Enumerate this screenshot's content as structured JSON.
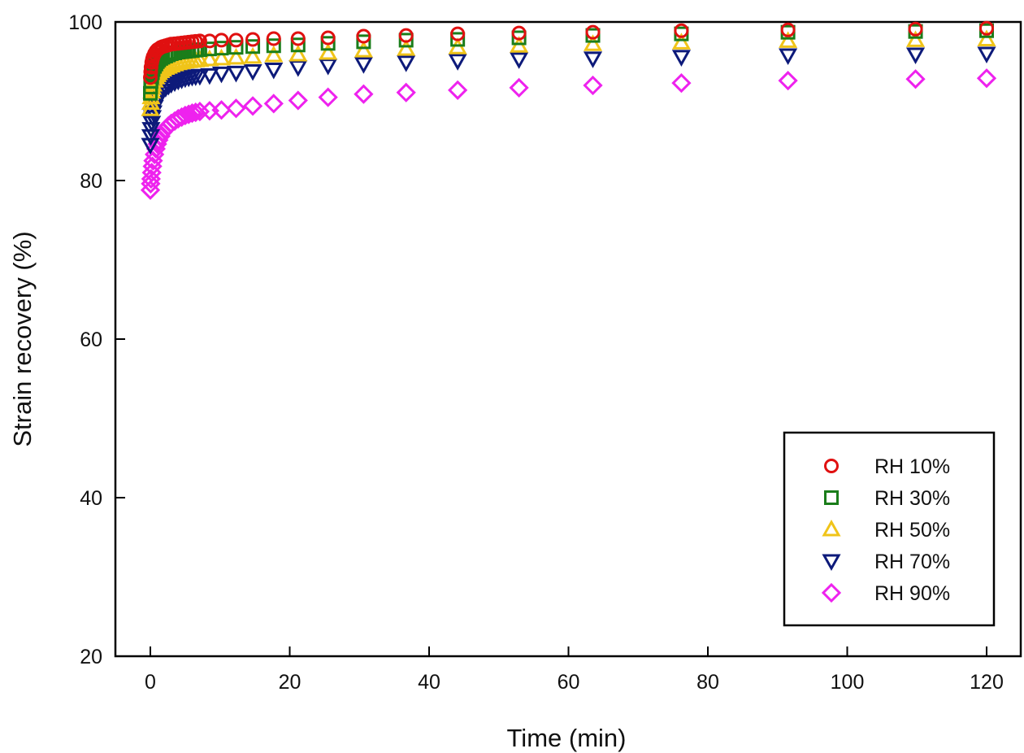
{
  "chart_data": {
    "type": "scatter",
    "title": "",
    "xlabel": "Time (min)",
    "ylabel": "Strain recovery (%)",
    "xlim": [
      -4.5,
      125.5
    ],
    "ylim": [
      20,
      100
    ],
    "xticks": [
      0,
      20,
      40,
      60,
      80,
      100,
      120
    ],
    "yticks": [
      20,
      40,
      60,
      80,
      100
    ],
    "xtick_labels": [
      "0",
      "20",
      "40",
      "60",
      "80",
      "100",
      "120"
    ],
    "ytick_labels": [
      "20",
      "40",
      "60",
      "80",
      "100"
    ],
    "grid": false,
    "legend_position": "bottom-right",
    "x": [
      0,
      0.05,
      0.1,
      0.2,
      0.3,
      0.4,
      0.6,
      0.8,
      1.0,
      1.2,
      1.5,
      1.8,
      2.2,
      2.6,
      3.0,
      3.5,
      4.0,
      4.5,
      5.0,
      5.5,
      6.0,
      6.5,
      7.1,
      8.5,
      10.2,
      12.3,
      14.7,
      17.7,
      21.2,
      25.5,
      30.6,
      36.7,
      44.1,
      52.9,
      63.5,
      76.2,
      91.5,
      109.8,
      120
    ],
    "series": [
      {
        "name": "RH 10%",
        "marker": "circle",
        "color": "#e01010",
        "values": [
          93.0,
          93.7,
          94.3,
          94.9,
          95.3,
          95.6,
          96.0,
          96.3,
          96.5,
          96.6,
          96.8,
          96.9,
          97.0,
          97.1,
          97.2,
          97.25,
          97.3,
          97.35,
          97.4,
          97.45,
          97.5,
          97.55,
          97.6,
          97.6,
          97.7,
          97.7,
          97.8,
          97.9,
          97.9,
          98.0,
          98.2,
          98.3,
          98.5,
          98.6,
          98.7,
          98.9,
          99.0,
          99.1,
          99.2
        ]
      },
      {
        "name": "RH 30%",
        "marker": "square",
        "color": "#1a7d1a",
        "values": [
          91.0,
          91.8,
          92.5,
          93.1,
          93.6,
          94.0,
          94.4,
          94.7,
          95.0,
          95.2,
          95.4,
          95.55,
          95.7,
          95.85,
          96.0,
          96.1,
          96.2,
          96.25,
          96.3,
          96.35,
          96.4,
          96.45,
          96.5,
          96.6,
          96.7,
          96.8,
          96.9,
          97.0,
          97.1,
          97.3,
          97.5,
          97.7,
          97.8,
          98.0,
          98.3,
          98.5,
          98.7,
          98.8,
          98.9
        ]
      },
      {
        "name": "RH 50%",
        "marker": "triangle-up",
        "color": "#f0c419",
        "values": [
          89.0,
          89.8,
          90.5,
          91.2,
          91.7,
          92.1,
          92.6,
          93.0,
          93.3,
          93.55,
          93.8,
          94.0,
          94.2,
          94.35,
          94.5,
          94.65,
          94.8,
          94.9,
          95.0,
          95.05,
          95.1,
          95.15,
          95.2,
          95.3,
          95.4,
          95.5,
          95.6,
          95.8,
          95.9,
          96.1,
          96.4,
          96.6,
          96.8,
          97.0,
          97.2,
          97.4,
          97.6,
          97.7,
          97.8
        ]
      },
      {
        "name": "RH 70%",
        "marker": "triangle-down",
        "color": "#0d1a7a",
        "values": [
          84.5,
          85.6,
          86.5,
          87.3,
          88.0,
          88.6,
          89.3,
          89.8,
          90.3,
          90.6,
          91.0,
          91.35,
          91.7,
          91.95,
          92.2,
          92.4,
          92.6,
          92.75,
          92.9,
          93.0,
          93.1,
          93.15,
          93.2,
          93.3,
          93.5,
          93.6,
          93.8,
          94.0,
          94.3,
          94.5,
          94.7,
          94.9,
          95.1,
          95.3,
          95.4,
          95.6,
          95.8,
          95.9,
          96.0
        ]
      },
      {
        "name": "RH 90%",
        "marker": "diamond",
        "color": "#ee22ee",
        "values": [
          78.8,
          79.6,
          80.2,
          81.0,
          81.8,
          82.5,
          83.3,
          84.0,
          84.6,
          85.1,
          85.6,
          86.1,
          86.5,
          86.9,
          87.2,
          87.5,
          87.8,
          88.0,
          88.2,
          88.35,
          88.5,
          88.6,
          88.7,
          88.8,
          88.9,
          89.1,
          89.4,
          89.7,
          90.1,
          90.5,
          90.9,
          91.1,
          91.4,
          91.7,
          92.0,
          92.3,
          92.6,
          92.8,
          92.9
        ]
      }
    ]
  }
}
